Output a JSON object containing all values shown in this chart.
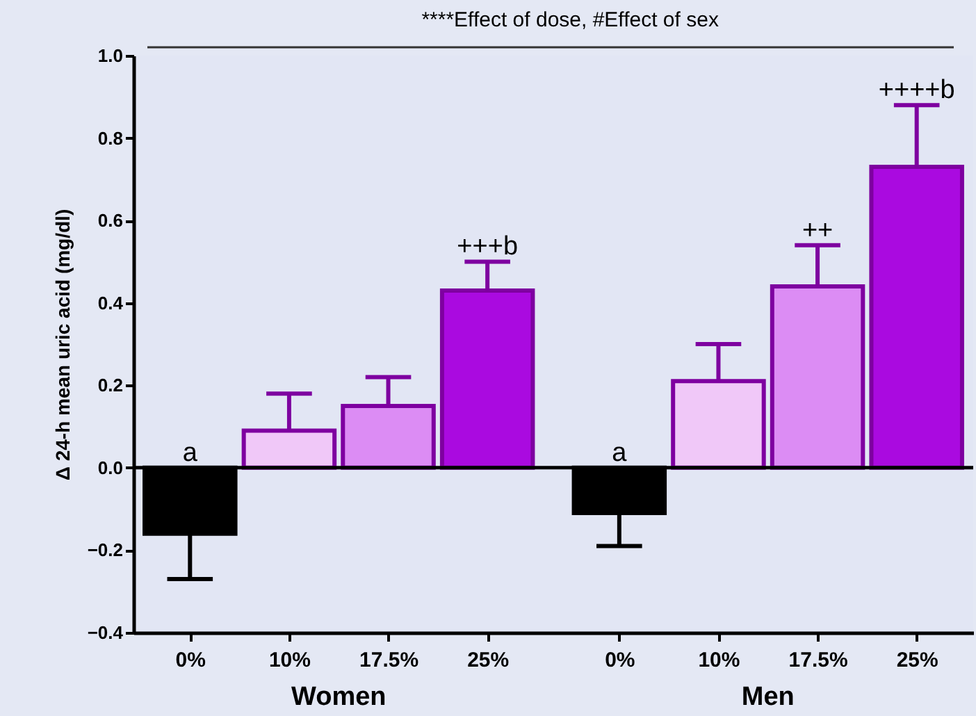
{
  "chart_data": {
    "type": "bar",
    "ylabel": "Δ 24-h mean uric acid (mg/dl)",
    "categories": [
      "0%",
      "10%",
      "17.5%",
      "25%",
      "0%",
      "10%",
      "17.5%",
      "25%"
    ],
    "values": [
      -0.16,
      0.09,
      0.15,
      0.43,
      -0.11,
      0.21,
      0.44,
      0.73
    ],
    "errors": [
      [
        -0.27,
        -0.16
      ],
      [
        0.09,
        0.18
      ],
      [
        0.15,
        0.22
      ],
      [
        0.43,
        0.5
      ],
      [
        -0.19,
        -0.11
      ],
      [
        0.21,
        0.3
      ],
      [
        0.44,
        0.54
      ],
      [
        0.73,
        0.88
      ]
    ],
    "colors": [
      "#000000",
      "#f0c8f8",
      "#dc8cf4",
      "#aa0ae0",
      "#000000",
      "#f0c8f8",
      "#dc8cf4",
      "#aa0ae0"
    ],
    "value_labels": [
      "a",
      null,
      null,
      "+++b",
      "a",
      null,
      "++",
      "++++b"
    ],
    "annotations": [
      "****Effect of dose, #Effect of sex",
      "Women",
      "Men"
    ],
    "ref_lines": [
      {
        "axis": "y",
        "value": 0
      }
    ],
    "ylim": [
      -0.4,
      1.0
    ],
    "yticks": [
      -0.4,
      -0.2,
      {
        "value": 0,
        "label": "0.0"
      },
      0.2,
      0.4,
      0.6,
      0.8,
      {
        "value": 1.0,
        "label": "1.0"
      }
    ],
    "grid": false
  }
}
